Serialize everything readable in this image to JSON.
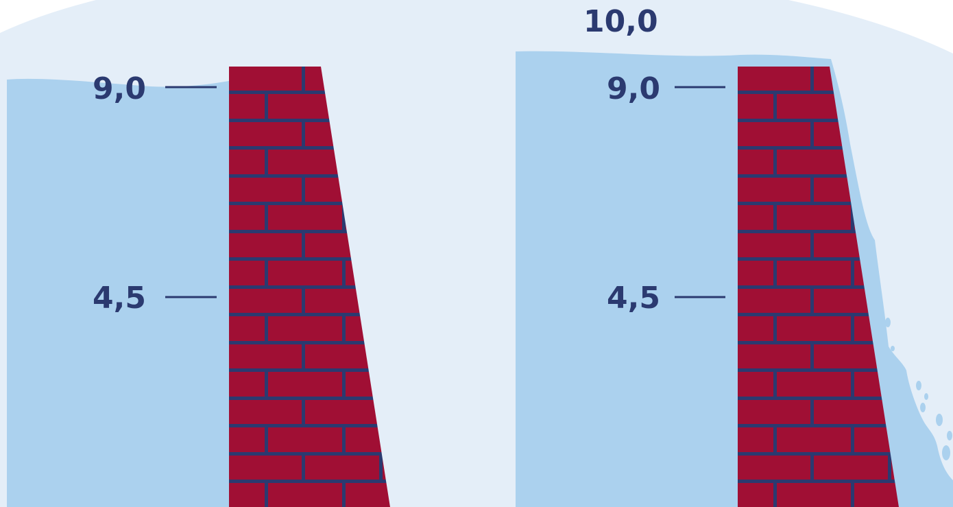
{
  "colors": {
    "background": "#e4eef8",
    "water": "#abd1ee",
    "brick": "#a00f34",
    "mortar": "#2b3a70",
    "label": "#2b3a70"
  },
  "left_panel": {
    "labels": {
      "top": "9,0",
      "middle": "4,5"
    }
  },
  "right_panel": {
    "labels": {
      "overflow": "10,0",
      "top": "9,0",
      "middle": "4,5"
    }
  }
}
